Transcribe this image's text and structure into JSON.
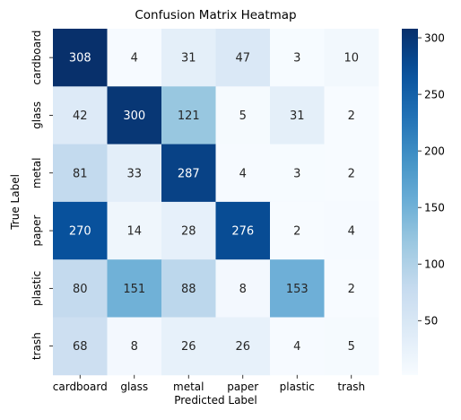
{
  "chart_data": {
    "type": "heatmap",
    "title": "Confusion Matrix Heatmap",
    "xlabel": "Predicted Label",
    "ylabel": "True Label",
    "x_categories": [
      "cardboard",
      "glass",
      "metal",
      "paper",
      "plastic",
      "trash"
    ],
    "y_categories": [
      "cardboard",
      "glass",
      "metal",
      "paper",
      "plastic",
      "trash"
    ],
    "values": [
      [
        308,
        4,
        31,
        47,
        3,
        10
      ],
      [
        42,
        300,
        121,
        5,
        31,
        2
      ],
      [
        81,
        33,
        287,
        4,
        3,
        2
      ],
      [
        270,
        14,
        28,
        276,
        2,
        4
      ],
      [
        80,
        151,
        88,
        8,
        153,
        2
      ],
      [
        68,
        8,
        26,
        26,
        4,
        5
      ]
    ],
    "colorbar": {
      "colormap": "Blues",
      "range": [
        2,
        308
      ],
      "ticks": [
        50,
        100,
        150,
        200,
        250,
        300
      ]
    },
    "annotations": true,
    "grid": false
  }
}
